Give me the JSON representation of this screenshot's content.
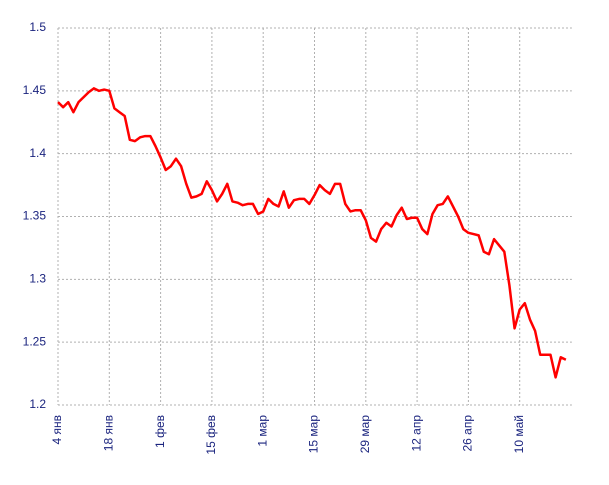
{
  "chart_data": {
    "type": "line",
    "color": "#ff0000",
    "grid": true,
    "categories": [
      "4 янв",
      null,
      null,
      null,
      null,
      null,
      null,
      null,
      null,
      null,
      "18 янв",
      null,
      null,
      null,
      null,
      null,
      null,
      null,
      null,
      null,
      "1 фев",
      null,
      null,
      null,
      null,
      null,
      null,
      null,
      null,
      null,
      "15 фев",
      null,
      null,
      null,
      null,
      null,
      null,
      null,
      null,
      null,
      "1 мар",
      null,
      null,
      null,
      null,
      null,
      null,
      null,
      null,
      null,
      "15 мар",
      null,
      null,
      null,
      null,
      null,
      null,
      null,
      null,
      null,
      "29 мар",
      null,
      null,
      null,
      null,
      null,
      null,
      null,
      null,
      null,
      "12 апр",
      null,
      null,
      null,
      null,
      null,
      null,
      null,
      null,
      null,
      "26 апр",
      null,
      null,
      null,
      null,
      null,
      null,
      null,
      null,
      null,
      "10 май",
      null,
      null,
      null,
      null,
      null,
      null,
      null,
      null,
      null
    ],
    "values": [
      1.441,
      1.437,
      1.441,
      1.433,
      1.441,
      1.445,
      1.449,
      1.452,
      1.45,
      1.451,
      1.45,
      1.436,
      1.433,
      1.43,
      1.411,
      1.41,
      1.413,
      1.414,
      1.414,
      1.406,
      1.397,
      1.387,
      1.39,
      1.396,
      1.39,
      1.376,
      1.365,
      1.366,
      1.368,
      1.378,
      1.371,
      1.362,
      1.368,
      1.376,
      1.362,
      1.361,
      1.359,
      1.36,
      1.36,
      1.352,
      1.354,
      1.364,
      1.36,
      1.358,
      1.37,
      1.357,
      1.363,
      1.364,
      1.364,
      1.36,
      1.367,
      1.375,
      1.371,
      1.368,
      1.376,
      1.376,
      1.36,
      1.354,
      1.355,
      1.355,
      1.347,
      1.333,
      1.33,
      1.34,
      1.345,
      1.342,
      1.351,
      1.357,
      1.348,
      1.349,
      1.349,
      1.34,
      1.336,
      1.352,
      1.359,
      1.36,
      1.366,
      1.358,
      1.35,
      1.34,
      1.337,
      1.336,
      1.335,
      1.322,
      1.32,
      1.332,
      1.327,
      1.322,
      1.295,
      1.261,
      1.276,
      1.281,
      1.268,
      1.259,
      1.24,
      1.24,
      1.24,
      1.222,
      1.238,
      1.236
    ],
    "ylim": [
      1.2,
      1.5
    ],
    "yticks": [
      1.2,
      1.25,
      1.3,
      1.35,
      1.4,
      1.45,
      1.5
    ]
  }
}
